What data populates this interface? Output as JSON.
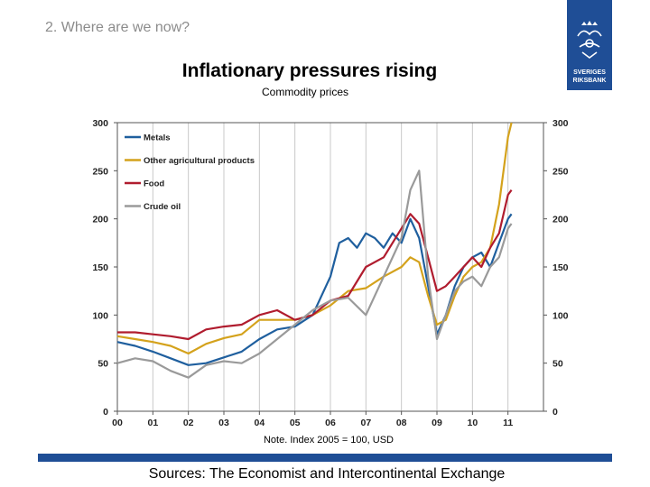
{
  "header": {
    "section": "2. Where are we now?"
  },
  "logo": {
    "line1": "SVERIGES",
    "line2": "RIKSBANK",
    "color": "#1f4e96"
  },
  "footer": {
    "note": "Note. Index 2005 = 100, USD",
    "sources": "Sources: The Economist and Intercontinental Exchange",
    "bar_color": "#1f4e96"
  },
  "chart_data": {
    "type": "line",
    "title": "Inflationary pressures rising",
    "subtitle": "Commodity prices",
    "xlabel": "",
    "ylabel": "",
    "xlim": [
      2000,
      2012
    ],
    "ylim": [
      0,
      300
    ],
    "x_tick_values": [
      2000,
      2001,
      2002,
      2003,
      2004,
      2005,
      2006,
      2007,
      2008,
      2009,
      2010,
      2011
    ],
    "x_tick_labels": [
      "00",
      "01",
      "02",
      "03",
      "04",
      "05",
      "06",
      "07",
      "08",
      "09",
      "10",
      "11"
    ],
    "y_ticks": [
      0,
      50,
      100,
      150,
      200,
      250,
      300
    ],
    "grid": {
      "x": true,
      "y": false
    },
    "legend": "top-left",
    "series": [
      {
        "name": "Metals",
        "color": "#1f5f9e",
        "x": [
          2000,
          2000.5,
          2001,
          2001.5,
          2002,
          2002.5,
          2003,
          2003.5,
          2004,
          2004.5,
          2005,
          2005.5,
          2006,
          2006.25,
          2006.5,
          2006.75,
          2007,
          2007.25,
          2007.5,
          2007.75,
          2008,
          2008.25,
          2008.5,
          2008.75,
          2009,
          2009.25,
          2009.5,
          2009.75,
          2010,
          2010.25,
          2010.5,
          2010.75,
          2011,
          2011.1
        ],
        "y": [
          72,
          68,
          62,
          55,
          48,
          50,
          56,
          62,
          75,
          85,
          88,
          100,
          140,
          175,
          180,
          170,
          185,
          180,
          170,
          185,
          175,
          200,
          180,
          130,
          80,
          100,
          130,
          150,
          160,
          165,
          150,
          175,
          200,
          205
        ]
      },
      {
        "name": "Other agricultural products",
        "color": "#d4a21c",
        "x": [
          2000,
          2000.5,
          2001,
          2001.5,
          2002,
          2002.5,
          2003,
          2003.5,
          2004,
          2004.5,
          2005,
          2005.5,
          2006,
          2006.5,
          2007,
          2007.5,
          2008,
          2008.25,
          2008.5,
          2008.75,
          2009,
          2009.25,
          2009.5,
          2009.75,
          2010,
          2010.25,
          2010.5,
          2010.75,
          2011,
          2011.1
        ],
        "y": [
          78,
          75,
          72,
          68,
          60,
          70,
          76,
          80,
          95,
          95,
          95,
          100,
          110,
          125,
          128,
          140,
          150,
          160,
          155,
          120,
          90,
          95,
          120,
          140,
          150,
          155,
          170,
          215,
          285,
          300
        ]
      },
      {
        "name": "Food",
        "color": "#b01c2e",
        "x": [
          2000,
          2000.5,
          2001,
          2001.5,
          2002,
          2002.5,
          2003,
          2003.5,
          2004,
          2004.5,
          2005,
          2005.5,
          2006,
          2006.5,
          2007,
          2007.5,
          2008,
          2008.25,
          2008.5,
          2008.75,
          2009,
          2009.25,
          2009.5,
          2009.75,
          2010,
          2010.25,
          2010.5,
          2010.75,
          2011,
          2011.1
        ],
        "y": [
          82,
          82,
          80,
          78,
          75,
          85,
          88,
          90,
          100,
          105,
          95,
          100,
          115,
          120,
          150,
          160,
          190,
          205,
          195,
          160,
          125,
          130,
          140,
          150,
          160,
          150,
          170,
          185,
          225,
          230
        ]
      },
      {
        "name": "Crude oil",
        "color": "#9a9a9a",
        "x": [
          2000,
          2000.5,
          2001,
          2001.5,
          2002,
          2002.5,
          2003,
          2003.5,
          2004,
          2004.5,
          2005,
          2005.5,
          2006,
          2006.5,
          2007,
          2007.5,
          2008,
          2008.25,
          2008.5,
          2008.75,
          2009,
          2009.25,
          2009.5,
          2009.75,
          2010,
          2010.25,
          2010.5,
          2010.75,
          2011,
          2011.1
        ],
        "y": [
          50,
          55,
          52,
          42,
          35,
          48,
          52,
          50,
          60,
          75,
          90,
          105,
          115,
          118,
          100,
          140,
          180,
          230,
          250,
          140,
          75,
          100,
          125,
          135,
          140,
          130,
          150,
          160,
          190,
          195
        ]
      }
    ]
  }
}
